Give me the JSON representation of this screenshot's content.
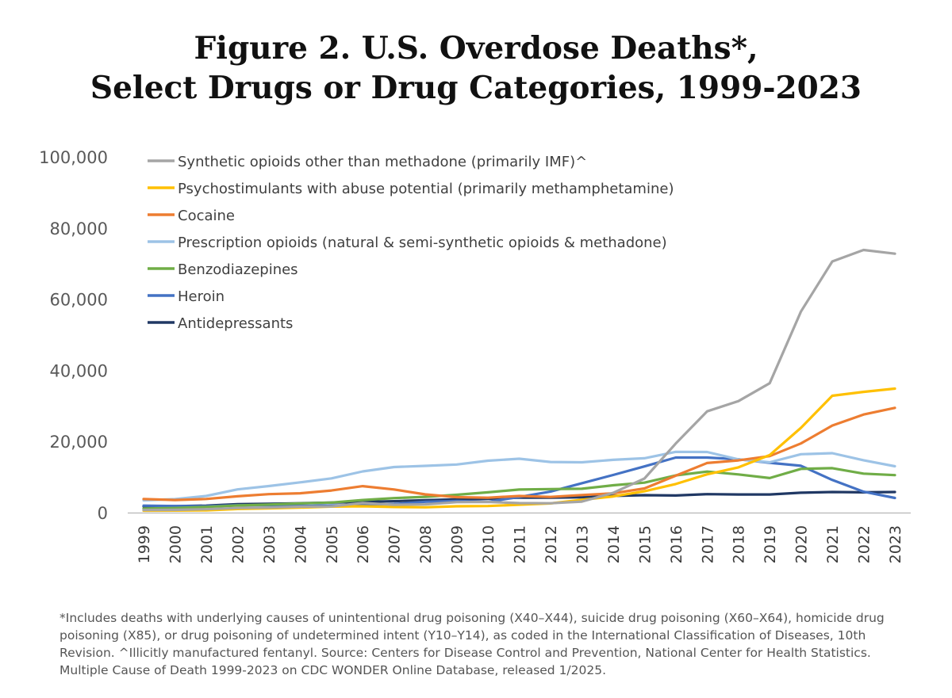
{
  "chart_data": {
    "type": "line",
    "title_line1": "Figure 2. U.S. Overdose Deaths*,",
    "title_line2": "Select Drugs or Drug Categories, 1999-2023",
    "xlabel": "",
    "ylabel": "",
    "ylim": [
      0,
      100000
    ],
    "yticks": [
      "0",
      "20,000",
      "40,000",
      "60,000",
      "80,000",
      "100,000"
    ],
    "ytick_values": [
      0,
      20000,
      40000,
      60000,
      80000,
      100000
    ],
    "grid": false,
    "legend_position": "top-left",
    "x": [
      "1999",
      "2000",
      "2001",
      "2002",
      "2003",
      "2004",
      "2005",
      "2006",
      "2007",
      "2008",
      "2009",
      "2010",
      "2011",
      "2012",
      "2013",
      "2014",
      "2015",
      "2016",
      "2017",
      "2018",
      "2019",
      "2020",
      "2021",
      "2022",
      "2023"
    ],
    "series": [
      {
        "name": "Synthetic opioids other than methadone (primarily IMF)^",
        "color": "#a5a5a5",
        "values": [
          730,
          782,
          957,
          1295,
          1400,
          1664,
          1742,
          2707,
          2213,
          2306,
          2946,
          3007,
          2666,
          2628,
          3105,
          5544,
          9580,
          19413,
          28466,
          31335,
          36359,
          56516,
          70601,
          73838,
          72776
        ]
      },
      {
        "name": "Psychostimulants with abuse potential (primarily methamphetamine)",
        "color": "#ffc000",
        "values": [
          547,
          578,
          650,
          1024,
          1170,
          1393,
          1684,
          1779,
          1590,
          1496,
          1780,
          1854,
          2223,
          2585,
          3589,
          4544,
          6002,
          8050,
          10749,
          12727,
          16167,
          23837,
          32856,
          33940,
          34855
        ]
      },
      {
        "name": "Cocaine",
        "color": "#ed7d31",
        "values": [
          3822,
          3544,
          3833,
          4599,
          5200,
          5443,
          6208,
          7448,
          6512,
          5129,
          4350,
          4183,
          4681,
          4404,
          4944,
          5415,
          6784,
          10375,
          13942,
          14666,
          15883,
          19447,
          24486,
          27569,
          29449
        ]
      },
      {
        "name": "Prescription opioids (natural & semi-synthetic opioids & methadone)",
        "color": "#9dc3e6",
        "values": [
          3442,
          3785,
          4672,
          6526,
          7456,
          8517,
          9612,
          11589,
          12796,
          13149,
          13523,
          14583,
          15140,
          14240,
          14145,
          14838,
          15281,
          17087,
          17029,
          14975,
          14139,
          16416,
          16706,
          14716,
          13026
        ]
      },
      {
        "name": "Benzodiazepines",
        "color": "#70ad47",
        "values": [
          1135,
          1298,
          1594,
          2004,
          2248,
          2585,
          2834,
          3542,
          4070,
          4442,
          5017,
          5696,
          6470,
          6624,
          6712,
          7677,
          8426,
          10457,
          11537,
          10724,
          9711,
          12290,
          12499,
          10964,
          10525
        ]
      },
      {
        "name": "Heroin",
        "color": "#4472c4",
        "values": [
          1960,
          1842,
          1779,
          2089,
          2080,
          1878,
          2009,
          2088,
          2399,
          3041,
          3278,
          3036,
          4397,
          5925,
          8257,
          10574,
          12989,
          15469,
          15482,
          14996,
          14019,
          13165,
          9173,
          5871,
          4125
        ]
      },
      {
        "name": "Antidepressants",
        "color": "#203864",
        "values": [
          1749,
          1800,
          1965,
          2375,
          2500,
          2629,
          2822,
          3010,
          3200,
          3500,
          3734,
          3889,
          4200,
          4200,
          4300,
          4700,
          4900,
          4800,
          5200,
          5100,
          5100,
          5600,
          5800,
          5700,
          5800
        ]
      }
    ]
  },
  "footnote": "*Includes deaths with underlying causes of unintentional drug poisoning (X40–X44), suicide drug poisoning (X60–X64), homicide drug poisoning (X85), or drug poisoning of undetermined intent (Y10–Y14), as coded in the International Classification of Diseases, 10th Revision. ^Illicitly manufactured fentanyl. Source: Centers for Disease Control and Prevention, National Center for Health Statistics. Multiple Cause of Death 1999-2023 on CDC WONDER Online Database, released 1/2025."
}
